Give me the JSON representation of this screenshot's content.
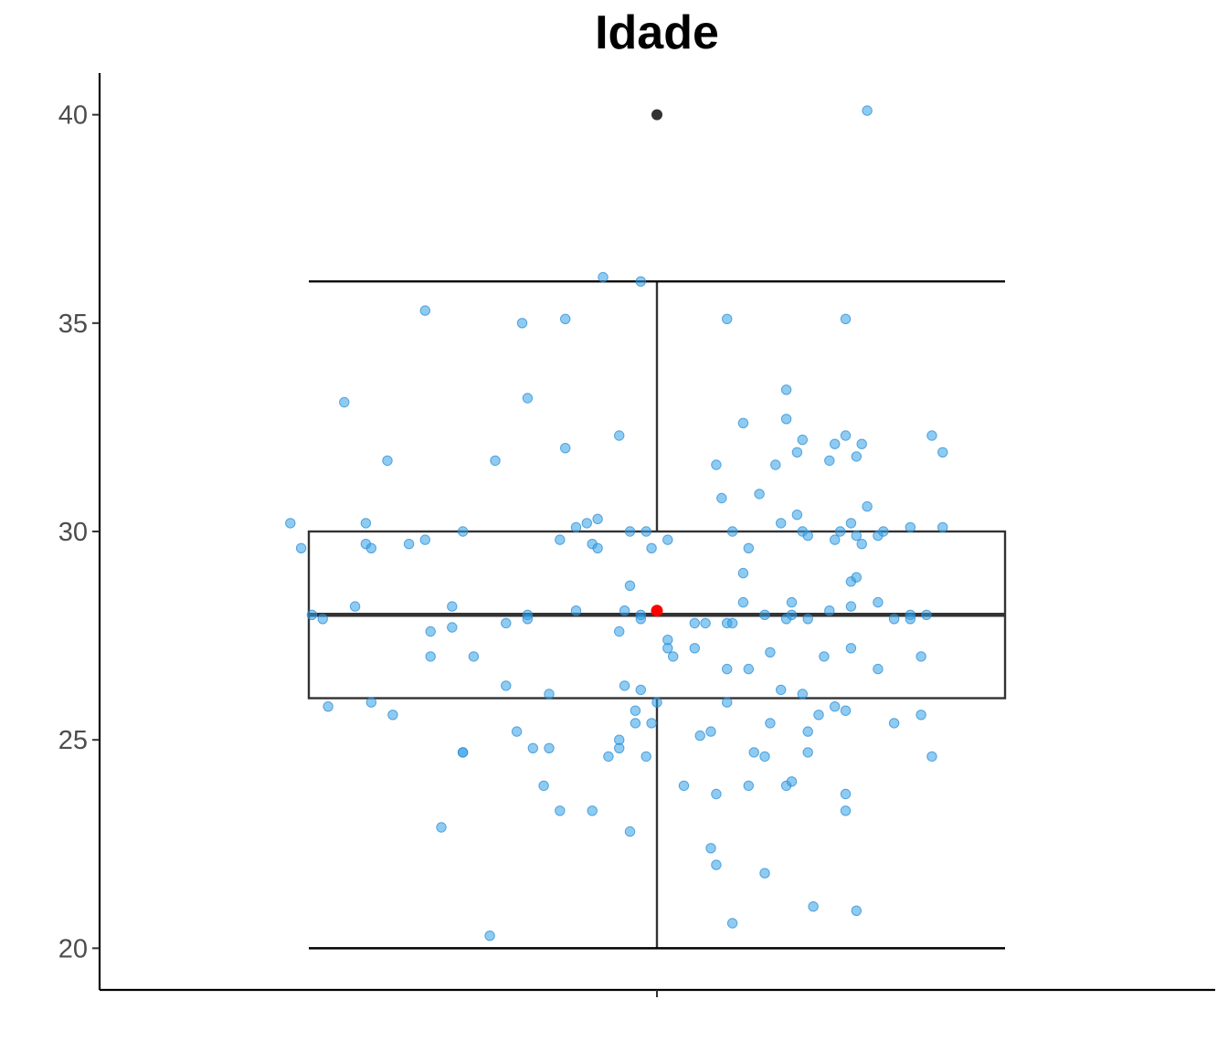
{
  "chart_data": {
    "type": "box",
    "title": "Idade",
    "xlabel": "",
    "ylabel": "",
    "ylim": [
      19.0,
      41.0
    ],
    "yticks": [
      20,
      25,
      30,
      35,
      40
    ],
    "grid": false,
    "legend": "none",
    "box": {
      "whisker_low": 20,
      "q1": 26,
      "median": 28,
      "q3": 30,
      "whisker_high": 36,
      "mean": 28.1,
      "outliers": [
        40
      ]
    },
    "jitter_points": [
      [
        -0.68,
        30.2
      ],
      [
        -0.66,
        29.6
      ],
      [
        -0.64,
        28.0
      ],
      [
        -0.62,
        27.9
      ],
      [
        -0.61,
        25.8
      ],
      [
        -0.58,
        33.1
      ],
      [
        -0.56,
        28.2
      ],
      [
        -0.54,
        30.2
      ],
      [
        -0.54,
        29.7
      ],
      [
        -0.53,
        29.6
      ],
      [
        -0.53,
        25.9
      ],
      [
        -0.5,
        31.7
      ],
      [
        -0.49,
        25.6
      ],
      [
        -0.46,
        29.7
      ],
      [
        -0.43,
        29.8
      ],
      [
        -0.43,
        35.3
      ],
      [
        -0.42,
        27.6
      ],
      [
        -0.42,
        27.0
      ],
      [
        -0.4,
        22.9
      ],
      [
        -0.38,
        28.2
      ],
      [
        -0.38,
        27.7
      ],
      [
        -0.36,
        24.7
      ],
      [
        -0.36,
        24.7
      ],
      [
        -0.36,
        30.0
      ],
      [
        -0.34,
        27.0
      ],
      [
        -0.31,
        20.3
      ],
      [
        -0.3,
        31.7
      ],
      [
        -0.28,
        26.3
      ],
      [
        -0.28,
        27.8
      ],
      [
        -0.26,
        25.2
      ],
      [
        -0.25,
        35.0
      ],
      [
        -0.24,
        33.2
      ],
      [
        -0.24,
        28.0
      ],
      [
        -0.24,
        27.9
      ],
      [
        -0.23,
        24.8
      ],
      [
        -0.21,
        23.9
      ],
      [
        -0.2,
        24.8
      ],
      [
        -0.2,
        26.1
      ],
      [
        -0.18,
        29.8
      ],
      [
        -0.18,
        23.3
      ],
      [
        -0.17,
        35.1
      ],
      [
        -0.17,
        32.0
      ],
      [
        -0.15,
        30.1
      ],
      [
        -0.15,
        28.1
      ],
      [
        -0.13,
        30.2
      ],
      [
        -0.12,
        29.7
      ],
      [
        -0.12,
        23.3
      ],
      [
        -0.11,
        30.3
      ],
      [
        -0.11,
        29.6
      ],
      [
        -0.1,
        36.1
      ],
      [
        -0.09,
        24.6
      ],
      [
        -0.07,
        27.6
      ],
      [
        -0.07,
        32.3
      ],
      [
        -0.07,
        25.0
      ],
      [
        -0.07,
        24.8
      ],
      [
        -0.06,
        28.1
      ],
      [
        -0.06,
        26.3
      ],
      [
        -0.05,
        30.0
      ],
      [
        -0.05,
        28.7
      ],
      [
        -0.05,
        22.8
      ],
      [
        -0.04,
        25.7
      ],
      [
        -0.04,
        25.4
      ],
      [
        -0.03,
        36.0
      ],
      [
        -0.03,
        28.0
      ],
      [
        -0.03,
        27.9
      ],
      [
        -0.03,
        26.2
      ],
      [
        -0.02,
        30.0
      ],
      [
        -0.02,
        24.6
      ],
      [
        -0.01,
        25.4
      ],
      [
        -0.01,
        29.6
      ],
      [
        0.0,
        25.9
      ],
      [
        0.02,
        29.8
      ],
      [
        0.02,
        27.4
      ],
      [
        0.02,
        27.2
      ],
      [
        0.03,
        27.0
      ],
      [
        0.05,
        23.9
      ],
      [
        0.07,
        27.8
      ],
      [
        0.07,
        27.2
      ],
      [
        0.08,
        25.1
      ],
      [
        0.09,
        27.8
      ],
      [
        0.1,
        22.4
      ],
      [
        0.1,
        25.2
      ],
      [
        0.11,
        22.0
      ],
      [
        0.11,
        23.7
      ],
      [
        0.11,
        31.6
      ],
      [
        0.12,
        30.8
      ],
      [
        0.13,
        26.7
      ],
      [
        0.13,
        25.9
      ],
      [
        0.13,
        27.8
      ],
      [
        0.13,
        35.1
      ],
      [
        0.14,
        27.8
      ],
      [
        0.14,
        20.6
      ],
      [
        0.14,
        30.0
      ],
      [
        0.16,
        32.6
      ],
      [
        0.16,
        29.0
      ],
      [
        0.16,
        28.3
      ],
      [
        0.17,
        29.6
      ],
      [
        0.17,
        26.7
      ],
      [
        0.17,
        23.9
      ],
      [
        0.18,
        24.7
      ],
      [
        0.19,
        30.9
      ],
      [
        0.2,
        28.0
      ],
      [
        0.2,
        24.6
      ],
      [
        0.2,
        21.8
      ],
      [
        0.21,
        25.4
      ],
      [
        0.21,
        27.1
      ],
      [
        0.22,
        31.6
      ],
      [
        0.23,
        30.2
      ],
      [
        0.23,
        26.2
      ],
      [
        0.24,
        33.4
      ],
      [
        0.24,
        32.7
      ],
      [
        0.24,
        23.9
      ],
      [
        0.24,
        27.9
      ],
      [
        0.25,
        28.3
      ],
      [
        0.25,
        28.0
      ],
      [
        0.25,
        24.0
      ],
      [
        0.26,
        30.4
      ],
      [
        0.26,
        31.9
      ],
      [
        0.27,
        32.2
      ],
      [
        0.27,
        30.0
      ],
      [
        0.27,
        26.1
      ],
      [
        0.28,
        29.9
      ],
      [
        0.28,
        27.9
      ],
      [
        0.28,
        25.2
      ],
      [
        0.28,
        24.7
      ],
      [
        0.29,
        21.0
      ],
      [
        0.3,
        25.6
      ],
      [
        0.31,
        27.0
      ],
      [
        0.32,
        28.1
      ],
      [
        0.32,
        31.7
      ],
      [
        0.33,
        29.8
      ],
      [
        0.33,
        32.1
      ],
      [
        0.33,
        25.8
      ],
      [
        0.34,
        30.0
      ],
      [
        0.35,
        25.7
      ],
      [
        0.35,
        35.1
      ],
      [
        0.35,
        32.3
      ],
      [
        0.35,
        23.7
      ],
      [
        0.35,
        23.3
      ],
      [
        0.36,
        28.8
      ],
      [
        0.36,
        27.2
      ],
      [
        0.36,
        28.2
      ],
      [
        0.36,
        30.2
      ],
      [
        0.37,
        29.9
      ],
      [
        0.37,
        28.9
      ],
      [
        0.37,
        20.9
      ],
      [
        0.37,
        31.8
      ],
      [
        0.38,
        32.1
      ],
      [
        0.38,
        29.7
      ],
      [
        0.39,
        40.1
      ],
      [
        0.39,
        30.6
      ],
      [
        0.41,
        29.9
      ],
      [
        0.41,
        26.7
      ],
      [
        0.41,
        28.3
      ],
      [
        0.42,
        30.0
      ],
      [
        0.44,
        27.9
      ],
      [
        0.44,
        25.4
      ],
      [
        0.47,
        28.0
      ],
      [
        0.47,
        27.9
      ],
      [
        0.47,
        30.1
      ],
      [
        0.49,
        27.0
      ],
      [
        0.49,
        25.6
      ],
      [
        0.5,
        28.0
      ],
      [
        0.51,
        24.6
      ],
      [
        0.51,
        32.3
      ],
      [
        0.53,
        31.9
      ],
      [
        0.53,
        30.1
      ]
    ]
  }
}
